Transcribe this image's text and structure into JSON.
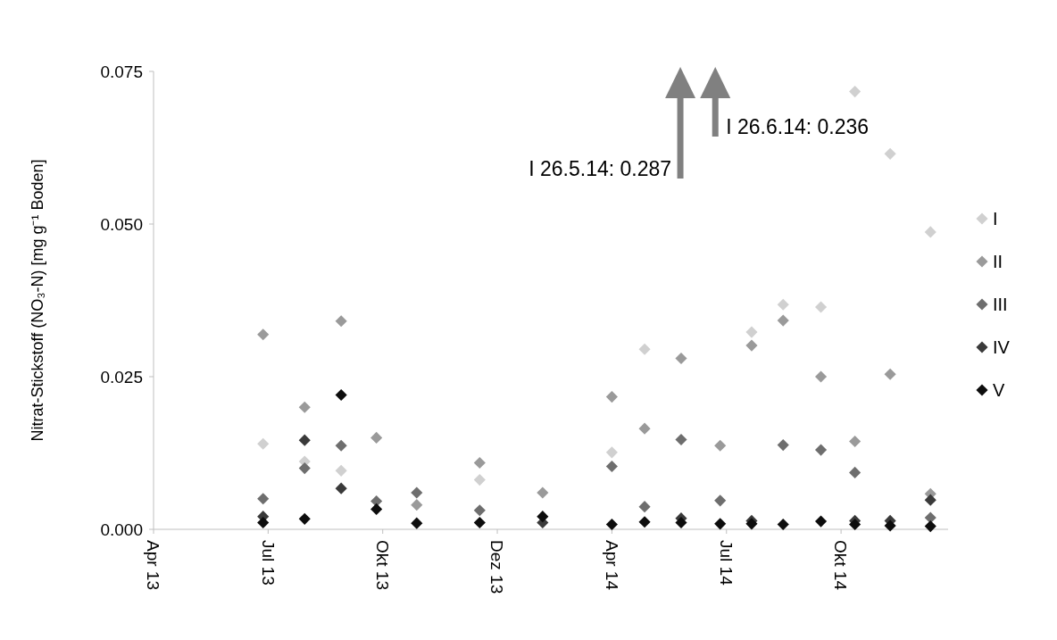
{
  "chart_data": {
    "type": "scatter",
    "ylabel": "Nitrat-Stickstoff (NO₃-N) [mg g⁻¹ Boden]",
    "x": [
      "2013-06-28",
      "2013-07-31",
      "2013-08-29",
      "2013-09-26",
      "2013-10-28",
      "2013-12-17",
      "2014-02-05",
      "2014-04-01",
      "2014-04-27",
      "2014-05-26",
      "2014-06-26",
      "2014-07-21",
      "2014-08-15",
      "2014-09-14",
      "2014-10-11",
      "2014-11-08",
      "2014-12-10"
    ],
    "xlim": [
      "2013-04-02",
      "2014-12-24"
    ],
    "xticks": [
      {
        "value": "2013-04-02",
        "label": "Apr 13"
      },
      {
        "value": "2013-07-02",
        "label": "Jul 13"
      },
      {
        "value": "2013-10-01",
        "label": "Okt 13"
      },
      {
        "value": "2013-12-31",
        "label": "Dez 13"
      },
      {
        "value": "2014-04-01",
        "label": "Apr 14"
      },
      {
        "value": "2014-07-01",
        "label": "Jul 14"
      },
      {
        "value": "2014-09-30",
        "label": "Okt 14"
      }
    ],
    "ylim": [
      0,
      0.075
    ],
    "yticks": [
      {
        "value": 0,
        "label": "0.000"
      },
      {
        "value": 0.025,
        "label": "0.025"
      },
      {
        "value": 0.05,
        "label": "0.050"
      },
      {
        "value": 0.075,
        "label": "0.075"
      }
    ],
    "marker": "diamond",
    "legend": "right",
    "series": [
      {
        "name": "I",
        "color": "#d0d0d0",
        "values": [
          0.014,
          0.0111,
          0.0096,
          null,
          null,
          0.0081,
          null,
          0.0126,
          0.0295,
          null,
          null,
          0.0323,
          0.0368,
          0.0364,
          0.0717,
          0.0615,
          0.0487
        ]
      },
      {
        "name": "II",
        "color": "#9a9a9a",
        "values": [
          0.0319,
          0.02,
          0.0341,
          0.015,
          0.004,
          0.0109,
          0.006,
          0.0217,
          0.0165,
          0.028,
          0.0137,
          0.0301,
          0.0342,
          0.025,
          0.0144,
          0.0254,
          0.0058
        ]
      },
      {
        "name": "III",
        "color": "#6e6e6e",
        "values": [
          0.005,
          0.01,
          0.0137,
          0.0046,
          0.006,
          0.0031,
          null,
          0.0103,
          0.0037,
          0.0147,
          0.0047,
          null,
          0.0138,
          0.013,
          0.0093,
          null,
          0.0019
        ]
      },
      {
        "name": "IV",
        "color": "#3a3a3a",
        "values": [
          0.0021,
          0.0146,
          0.0067,
          null,
          null,
          null,
          0.0011,
          null,
          null,
          0.0018,
          null,
          0.0014,
          null,
          null,
          0.0014,
          0.0014,
          0.0048
        ]
      },
      {
        "name": "V",
        "color": "#0d0d0d",
        "values": [
          0.0011,
          0.0017,
          0.022,
          0.0033,
          0.001,
          0.0011,
          0.0021,
          0.0008,
          0.0012,
          0.0011,
          0.0009,
          0.0009,
          0.0008,
          0.0013,
          0.0008,
          0.0006,
          0.0005
        ]
      }
    ],
    "annotations": [
      "I 26.5.14: 0.287",
      "I 26.6.14: 0.236"
    ]
  }
}
